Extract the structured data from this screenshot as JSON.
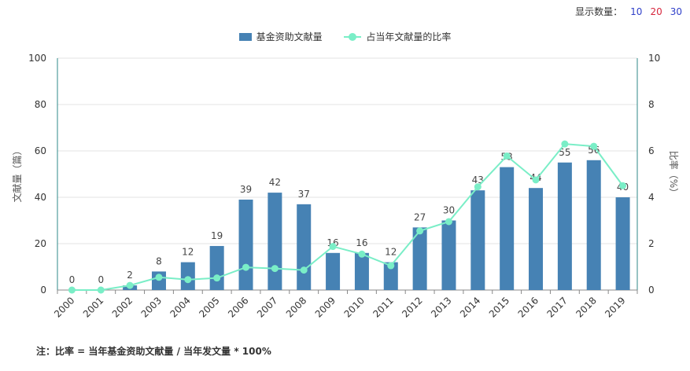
{
  "controls": {
    "label": "显示数量：",
    "options": [
      {
        "label": "10",
        "color": "#2f3fc9"
      },
      {
        "label": "20",
        "color": "#d7263d"
      },
      {
        "label": "30",
        "color": "#2f3fc9"
      }
    ]
  },
  "footer_note": "注：比率 = 当年基金资助文献量 / 当年发文量 * 100%",
  "chart_data": {
    "type": "bar",
    "categories": [
      "2000",
      "2001",
      "2002",
      "2003",
      "2004",
      "2005",
      "2006",
      "2007",
      "2008",
      "2009",
      "2010",
      "2011",
      "2012",
      "2013",
      "2014",
      "2015",
      "2016",
      "2017",
      "2018",
      "2019"
    ],
    "series": [
      {
        "name": "基金资助文献量",
        "type": "bar",
        "axis": "left",
        "color": "#4682b4",
        "values": [
          0,
          0,
          2,
          8,
          12,
          19,
          39,
          42,
          37,
          16,
          16,
          12,
          27,
          30,
          43,
          53,
          44,
          55,
          56,
          40
        ]
      },
      {
        "name": "占当年文献量的比率",
        "type": "line",
        "axis": "right",
        "color": "#7aeec7",
        "values": [
          0.0,
          0.0,
          0.2,
          0.55,
          0.45,
          0.52,
          0.98,
          0.93,
          0.86,
          1.88,
          1.55,
          1.05,
          2.55,
          2.95,
          4.45,
          5.78,
          4.75,
          6.3,
          6.2,
          4.5
        ]
      }
    ],
    "ylabel": "文献量（篇）",
    "y2label": "比率（%）",
    "ylim": [
      0,
      100
    ],
    "y2lim": [
      0,
      10
    ],
    "yticks": [
      0,
      20,
      40,
      60,
      80,
      100
    ],
    "y2ticks": [
      0,
      2,
      4,
      6,
      8,
      10
    ],
    "grid": true,
    "legend_position": "top-center"
  }
}
